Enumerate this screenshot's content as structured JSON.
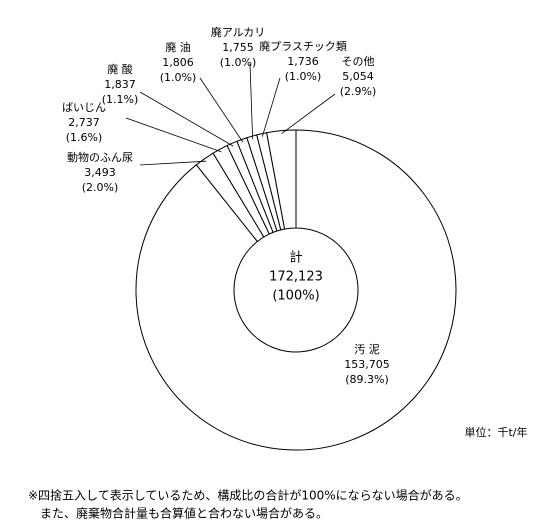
{
  "chart_data": {
    "type": "donut",
    "categories": [
      "汚 泥",
      "動物のふん尿",
      "ばいじん",
      "廃 酸",
      "廃 油",
      "廃アルカリ",
      "廃プラスチック類",
      "その他"
    ],
    "values": [
      153705,
      3493,
      2737,
      1837,
      1806,
      1755,
      1736,
      5054
    ],
    "value_labels": [
      "153,705",
      "3,493",
      "2,737",
      "1,837",
      "1,806",
      "1,755",
      "1,736",
      "5,054"
    ],
    "percents": [
      89.3,
      2.0,
      1.6,
      1.1,
      1.0,
      1.0,
      1.0,
      2.9
    ],
    "percent_labels": [
      "(89.3%)",
      "(2.0%)",
      "(1.6%)",
      "(1.1%)",
      "(1.0%)",
      "(1.0%)",
      "(1.0%)",
      "(2.9%)"
    ],
    "color": "#ffffff",
    "center": {
      "title": "計",
      "total": 172123,
      "total_label": "172,123",
      "percent_label": "(100%)"
    },
    "unit": "単位：千t/年",
    "notes": [
      "※四捨五入して表示しているため、構成比の合計が100%にならない場合がある。",
      "　また、廃棄物合計量も合算値と合わない場合がある。"
    ]
  }
}
